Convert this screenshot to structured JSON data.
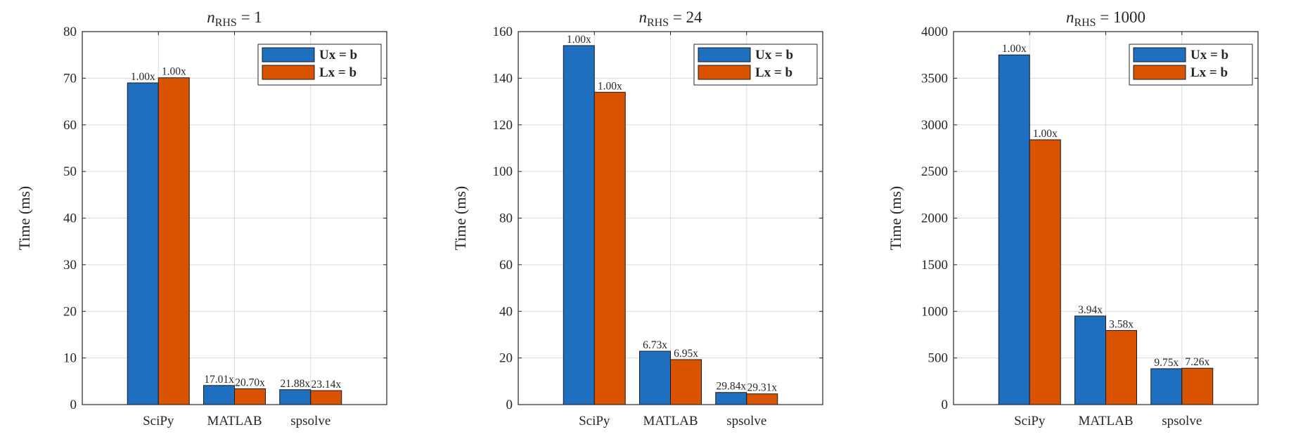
{
  "chart_data": [
    {
      "type": "bar",
      "title_var": "n",
      "title_sub": "RHS",
      "title_rest": " = 1",
      "ylabel": "Time (ms)",
      "categories": [
        "SciPy",
        "MATLAB",
        "spsolve"
      ],
      "ylim": [
        0,
        80
      ],
      "yticks": [
        "0",
        "10",
        "20",
        "30",
        "40",
        "50",
        "60",
        "70",
        "80"
      ],
      "grid": true,
      "legend_position": "top-right",
      "series": [
        {
          "name": "Ux = b",
          "color": "#1F6FC0",
          "values": [
            69,
            4.1,
            3.2
          ],
          "labels": [
            "1.00x",
            "17.01x",
            "21.88x"
          ]
        },
        {
          "name": "Lx = b",
          "color": "#D95300",
          "values": [
            70.1,
            3.4,
            3.0
          ],
          "labels": [
            "1.00x",
            "20.70x",
            "23.14x"
          ]
        }
      ]
    },
    {
      "type": "bar",
      "title_var": "n",
      "title_sub": "RHS",
      "title_rest": " = 24",
      "ylabel": "Time (ms)",
      "categories": [
        "SciPy",
        "MATLAB",
        "spsolve"
      ],
      "ylim": [
        0,
        160
      ],
      "yticks": [
        "0",
        "20",
        "40",
        "60",
        "80",
        "100",
        "120",
        "140",
        "160"
      ],
      "grid": true,
      "legend_position": "top-right",
      "series": [
        {
          "name": "Ux = b",
          "color": "#1F6FC0",
          "values": [
            154,
            22.9,
            5.2
          ],
          "labels": [
            "1.00x",
            "6.73x",
            "29.84x"
          ]
        },
        {
          "name": "Lx = b",
          "color": "#D95300",
          "values": [
            134,
            19.3,
            4.6
          ],
          "labels": [
            "1.00x",
            "6.95x",
            "29.31x"
          ]
        }
      ]
    },
    {
      "type": "bar",
      "title_var": "n",
      "title_sub": "RHS",
      "title_rest": " = 1000",
      "ylabel": "Time (ms)",
      "categories": [
        "SciPy",
        "MATLAB",
        "spsolve"
      ],
      "ylim": [
        0,
        4000
      ],
      "yticks": [
        "0",
        "500",
        "1000",
        "1500",
        "2000",
        "2500",
        "3000",
        "3500",
        "4000"
      ],
      "grid": true,
      "legend_position": "top-right",
      "series": [
        {
          "name": "Ux = b",
          "color": "#1F6FC0",
          "values": [
            3750,
            950,
            385
          ],
          "labels": [
            "1.00x",
            "3.94x",
            "9.75x"
          ]
        },
        {
          "name": "Lx = b",
          "color": "#D95300",
          "values": [
            2840,
            795,
            390
          ],
          "labels": [
            "1.00x",
            "3.58x",
            "7.26x"
          ]
        }
      ]
    }
  ]
}
